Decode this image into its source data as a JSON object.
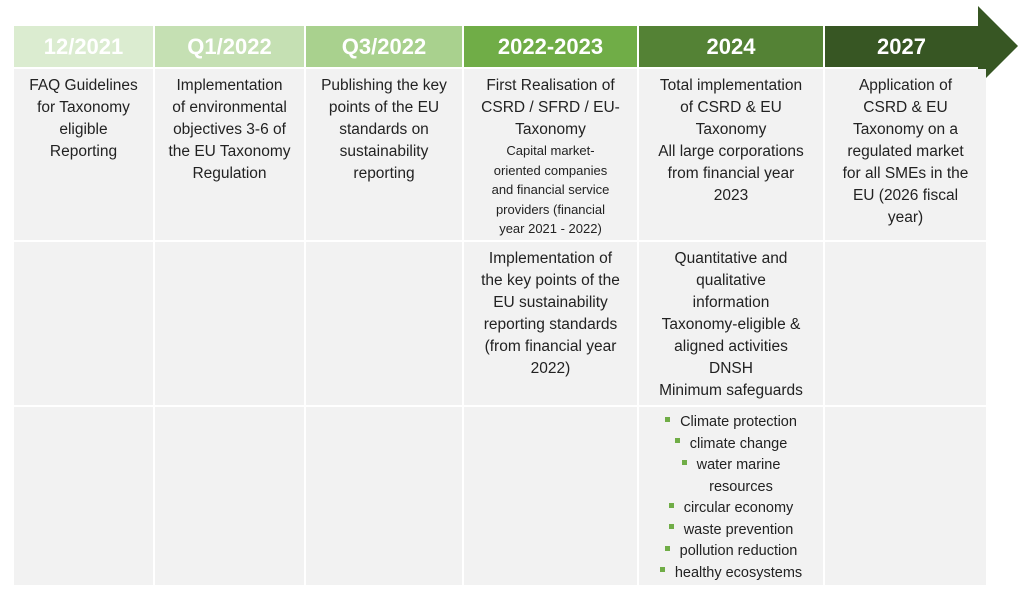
{
  "colors": {
    "header_1": "#dbecd0",
    "header_2": "#c5e0b3",
    "header_3": "#a9d18e",
    "header_4": "#70ad47",
    "header_5": "#548235",
    "header_6": "#375623",
    "cell_bg": "#f2f2f2",
    "bullet": "#70ad47"
  },
  "timeline": [
    {
      "label": "12/2021",
      "row1": [
        "FAQ Guidelines",
        "for Taxonomy",
        "eligible",
        "Reporting"
      ]
    },
    {
      "label": "Q1/2022",
      "row1": [
        "Implementation",
        "of environmental",
        "objectives 3-6 of",
        "the EU Taxonomy",
        "Regulation"
      ]
    },
    {
      "label": "Q3/2022",
      "row1": [
        "Publishing the key",
        "points of the EU",
        "standards on",
        "sustainability",
        "reporting"
      ]
    },
    {
      "label": "2022-2023",
      "row1": [
        "First Realisation of",
        "CSRD / SFRD / EU-",
        "Taxonomy"
      ],
      "row1_small": [
        "Capital market-",
        "oriented companies",
        "and financial service",
        "providers (financial",
        "year 2021 - 2022)"
      ],
      "row2": [
        "Implementation of",
        "the key points of the",
        "EU sustainability",
        "reporting standards",
        "(from financial year",
        "2022)"
      ]
    },
    {
      "label": "2024",
      "row1": [
        "Total implementation",
        "of CSRD & EU",
        "Taxonomy",
        "All large corporations",
        "from financial year",
        "2023"
      ],
      "row2": [
        "Quantitative and",
        "qualitative",
        "information",
        "Taxonomy-eligible &",
        "aligned activities",
        "DNSH",
        "Minimum safeguards"
      ],
      "row3": [
        "Climate protection",
        "climate change",
        "water marine",
        "resources",
        "circular economy",
        "waste prevention",
        "pollution reduction",
        "healthy ecosystems"
      ]
    },
    {
      "label": "2027",
      "row1": [
        "Application of",
        "CSRD & EU",
        "Taxonomy on a",
        "regulated market",
        "for all SMEs in the",
        "EU (2026 fiscal",
        "year)"
      ]
    }
  ]
}
